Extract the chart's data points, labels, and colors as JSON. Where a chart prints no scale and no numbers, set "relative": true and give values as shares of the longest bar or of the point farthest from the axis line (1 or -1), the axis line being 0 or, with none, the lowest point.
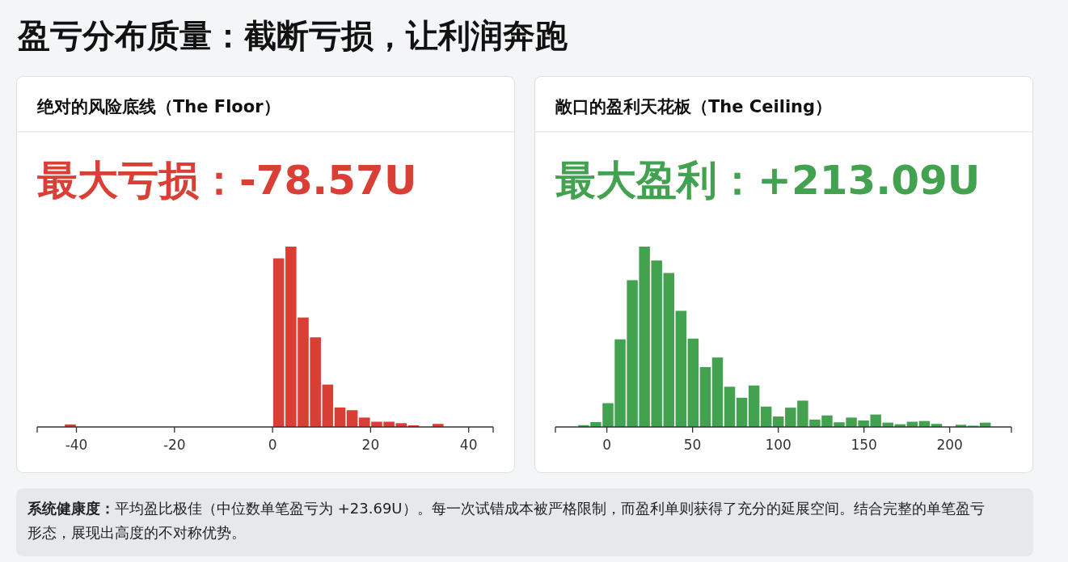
{
  "chart_data": [
    {
      "type": "other",
      "title": "盈亏分布质量：截断亏损，让利润奔跑"
    },
    {
      "type": "bar",
      "title": "绝对的风险底线（The Floor）",
      "subtitle": "最大亏损：-78.57U",
      "color": "#d93f35",
      "relative": true,
      "x": [
        -41.25,
        1.25,
        3.75,
        6.25,
        8.75,
        11.25,
        13.75,
        16.25,
        18.75,
        21.25,
        23.75,
        26.25,
        28.75,
        33.75
      ],
      "values": [
        0.014,
        0.935,
        1,
        0.607,
        0.497,
        0.235,
        0.108,
        0.093,
        0.052,
        0.029,
        0.029,
        0.021,
        0.009,
        0.017
      ],
      "xlim": [
        -48,
        45
      ],
      "xticks": [
        -40,
        -20,
        0,
        20,
        40
      ]
    },
    {
      "type": "bar",
      "title": "敞口的盈利天花板（The Ceiling）",
      "subtitle": "最大盈利：+213.09U",
      "color": "#43a24f",
      "relative": true,
      "x": [
        -13.55,
        -6.45,
        0.65,
        7.75,
        14.85,
        21.95,
        29.05,
        36.15,
        43.25,
        50.35,
        57.45,
        64.55,
        71.65,
        78.75,
        85.85,
        92.95,
        100.05,
        107.15,
        114.25,
        121.35,
        128.45,
        135.55,
        142.65,
        149.75,
        156.85,
        163.95,
        171.05,
        178.15,
        185.25,
        192.35,
        206.55,
        213.65,
        220.75
      ],
      "values": [
        0.01,
        0.027,
        0.132,
        0.486,
        0.814,
        1,
        0.923,
        0.854,
        0.644,
        0.49,
        0.332,
        0.385,
        0.223,
        0.162,
        0.23,
        0.113,
        0.058,
        0.107,
        0.146,
        0.041,
        0.064,
        0.026,
        0.052,
        0.036,
        0.069,
        0.024,
        0.015,
        0.029,
        0.033,
        0.017,
        0.012,
        0.007,
        0.024
      ],
      "xlim": [
        -30,
        236
      ],
      "xticks": [
        0,
        50,
        100,
        150,
        200
      ]
    },
    {
      "type": "other",
      "annotations": [
        "系统健康度：",
        "平均盈比极佳（中位数单笔盈亏为 +23.69U）。每一次试错成本被严格限制，而盈利单则获得了充分的延展空间。结合完整的单笔盈亏形态，展现出高度的不对称优势。"
      ]
    }
  ]
}
